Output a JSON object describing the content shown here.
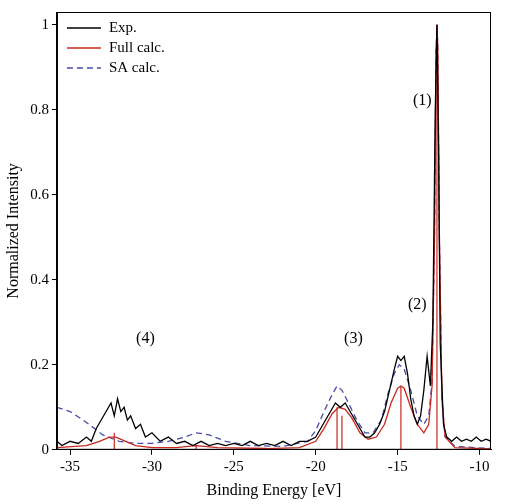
{
  "chart_data": {
    "type": "line",
    "x_label": "Binding Energy [eV]",
    "y_label": "Normalized Intensity",
    "xlim": [
      -35.8,
      -9.3
    ],
    "xticks": [
      -35,
      -30,
      -25,
      -20,
      -15,
      -10
    ],
    "ylim": [
      0,
      1.03
    ],
    "yticks": [
      0,
      0.2,
      0.4,
      0.6,
      0.8,
      1
    ],
    "legend": "upper left",
    "series": [
      {
        "name": "Exp.",
        "color": "#000000",
        "line_style": "solid",
        "x": [
          -35.8,
          -35.5,
          -35,
          -34.5,
          -34,
          -33.7,
          -33.4,
          -33.1,
          -32.8,
          -32.5,
          -32.3,
          -32.1,
          -31.9,
          -31.7,
          -31.5,
          -31.3,
          -31,
          -30.7,
          -30.4,
          -30,
          -29.5,
          -29,
          -28.5,
          -28,
          -27.5,
          -27,
          -26.5,
          -26,
          -25.5,
          -25,
          -24.5,
          -24,
          -23.5,
          -23,
          -22.5,
          -22,
          -21.5,
          -21,
          -20.5,
          -20,
          -19.7,
          -19.4,
          -19.1,
          -18.8,
          -18.5,
          -18.2,
          -17.9,
          -17.6,
          -17.3,
          -17,
          -16.7,
          -16.4,
          -16.1,
          -15.8,
          -15.5,
          -15.2,
          -15,
          -14.8,
          -14.6,
          -14.4,
          -14.2,
          -14,
          -13.8,
          -13.6,
          -13.4,
          -13.2,
          -13,
          -12.85,
          -12.7,
          -12.6,
          -12.5,
          -12.4,
          -12.2,
          -12,
          -11.7,
          -11.4,
          -11.1,
          -10.8,
          -10.5,
          -10.2,
          -9.9,
          -9.6,
          -9.3
        ],
        "values": [
          0.02,
          0.01,
          0.02,
          0.015,
          0.03,
          0.02,
          0.05,
          0.07,
          0.09,
          0.11,
          0.08,
          0.12,
          0.09,
          0.1,
          0.07,
          0.08,
          0.05,
          0.06,
          0.03,
          0.04,
          0.02,
          0.03,
          0.015,
          0.02,
          0.01,
          0.02,
          0.01,
          0.015,
          0.01,
          0.015,
          0.01,
          0.02,
          0.01,
          0.015,
          0.01,
          0.02,
          0.01,
          0.02,
          0.02,
          0.03,
          0.05,
          0.07,
          0.09,
          0.11,
          0.1,
          0.11,
          0.09,
          0.07,
          0.05,
          0.03,
          0.03,
          0.04,
          0.06,
          0.09,
          0.14,
          0.19,
          0.22,
          0.21,
          0.22,
          0.18,
          0.12,
          0.08,
          0.06,
          0.08,
          0.14,
          0.22,
          0.15,
          0.3,
          0.8,
          1.0,
          0.7,
          0.25,
          0.06,
          0.03,
          0.02,
          0.03,
          0.02,
          0.025,
          0.02,
          0.03,
          0.02,
          0.025,
          0.02
        ]
      },
      {
        "name": "Full calc.",
        "color": "#c8281e",
        "line_style": "solid",
        "x": [
          -35.8,
          -34,
          -33.2,
          -32.6,
          -32.2,
          -31.6,
          -31,
          -30,
          -28.5,
          -27.8,
          -27.3,
          -26.8,
          -26,
          -23,
          -21,
          -20,
          -19.5,
          -19,
          -18.6,
          -18.2,
          -17.8,
          -17.3,
          -16.8,
          -16.3,
          -15.8,
          -15.4,
          -15,
          -14.8,
          -14.6,
          -14.2,
          -13.8,
          -13.4,
          -13.1,
          -12.9,
          -12.75,
          -12.65,
          -12.6,
          -12.55,
          -12.45,
          -12.3,
          -12.1,
          -11.5,
          -9.3
        ],
        "values": [
          0.005,
          0.01,
          0.02,
          0.03,
          0.03,
          0.02,
          0.01,
          0.005,
          0.005,
          0.008,
          0.01,
          0.008,
          0.005,
          0.003,
          0.005,
          0.02,
          0.05,
          0.085,
          0.1,
          0.095,
          0.075,
          0.04,
          0.025,
          0.03,
          0.06,
          0.11,
          0.145,
          0.15,
          0.145,
          0.1,
          0.06,
          0.04,
          0.06,
          0.15,
          0.5,
          0.95,
          1.0,
          0.95,
          0.5,
          0.12,
          0.03,
          0.005,
          0.002
        ]
      },
      {
        "name": "SA calc.",
        "color": "#4a4aa8",
        "line_style": "dashed",
        "x": [
          -35.8,
          -35,
          -34.2,
          -33.5,
          -33,
          -32,
          -31,
          -30,
          -29,
          -28,
          -27.3,
          -26.5,
          -25.5,
          -24,
          -22,
          -20.5,
          -20,
          -19.5,
          -19,
          -18.7,
          -18.4,
          -18,
          -17.5,
          -17,
          -16.5,
          -16,
          -15.6,
          -15.2,
          -14.9,
          -14.6,
          -14.2,
          -13.8,
          -13.4,
          -13.1,
          -12.9,
          -12.75,
          -12.65,
          -12.6,
          -12.55,
          -12.45,
          -12.3,
          -12.1,
          -11.5,
          -9.3
        ],
        "values": [
          0.1,
          0.09,
          0.07,
          0.05,
          0.035,
          0.02,
          0.015,
          0.015,
          0.02,
          0.03,
          0.04,
          0.035,
          0.02,
          0.01,
          0.008,
          0.02,
          0.045,
          0.09,
          0.13,
          0.15,
          0.14,
          0.11,
          0.07,
          0.04,
          0.04,
          0.07,
          0.13,
          0.18,
          0.2,
          0.19,
          0.14,
          0.08,
          0.06,
          0.08,
          0.16,
          0.5,
          0.95,
          1.0,
          0.95,
          0.5,
          0.12,
          0.03,
          0.008,
          0.003
        ]
      }
    ],
    "sticks": {
      "color": "#c8281e",
      "x": [
        -12.6,
        -14.8,
        -18.7,
        -18.4,
        -27.3,
        -32.3
      ],
      "values": [
        1.0,
        0.15,
        0.1,
        0.08,
        0.01,
        0.04
      ]
    },
    "annotations": [
      {
        "text": "(1)",
        "x": -13.5,
        "y": 0.82
      },
      {
        "text": "(2)",
        "x": -13.8,
        "y": 0.34
      },
      {
        "text": "(3)",
        "x": -17.7,
        "y": 0.26
      },
      {
        "text": "(4)",
        "x": -30.4,
        "y": 0.26
      }
    ]
  }
}
